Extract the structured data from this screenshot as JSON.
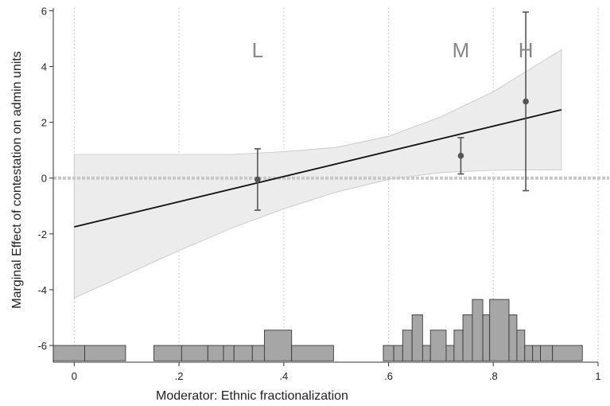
{
  "chart_data": {
    "type": "line",
    "xlabel": "Moderator: Ethnic fractionalization",
    "ylabel": "Marginal Effect of contestation on admin units",
    "xlim": [
      -0.04,
      1.0
    ],
    "ylim": [
      -6.6,
      6.1
    ],
    "xticks": [
      0,
      0.2,
      0.4,
      0.6,
      0.8,
      1.0
    ],
    "xtick_labels": [
      "0",
      ".2",
      ".4",
      ".6",
      ".8",
      "1"
    ],
    "yticks": [
      -6,
      -4,
      -2,
      0,
      2,
      4,
      6
    ],
    "ytick_labels": [
      "-6",
      "-4",
      "-2",
      "0",
      "2",
      "4",
      "6"
    ],
    "grid": "vertical dotted",
    "colors": {
      "line": "#111111",
      "band": "#ececec",
      "band_edge": "#c4c4c4",
      "points": "#555555",
      "bars": "#a6a6a6",
      "zero_line": "#c8c8c8"
    },
    "linear_fit": {
      "x": [
        0,
        0.93
      ],
      "y": [
        -1.75,
        2.45
      ]
    },
    "confidence_band": {
      "x": [
        0,
        0.1,
        0.2,
        0.3,
        0.4,
        0.5,
        0.6,
        0.7,
        0.8,
        0.93
      ],
      "upper": [
        0.85,
        0.85,
        0.85,
        0.85,
        0.95,
        1.1,
        1.5,
        2.2,
        3.1,
        4.6
      ],
      "lower": [
        -4.3,
        -3.45,
        -2.6,
        -1.8,
        -1.1,
        -0.5,
        -0.05,
        0.2,
        0.28,
        0.3
      ]
    },
    "terciles": [
      {
        "label": "L",
        "x": 0.35,
        "estimate": -0.05,
        "ci": [
          -1.15,
          1.05
        ]
      },
      {
        "label": "M",
        "x": 0.738,
        "estimate": 0.8,
        "ci": [
          0.15,
          1.45
        ]
      },
      {
        "label": "H",
        "x": 0.862,
        "estimate": 2.75,
        "ci": [
          -0.45,
          5.95
        ]
      }
    ],
    "histogram": {
      "base": -6.55,
      "unit_height": 0.55,
      "bars": [
        {
          "x0": -0.04,
          "x1": 0.02,
          "count": 1
        },
        {
          "x0": 0.02,
          "x1": 0.098,
          "count": 1
        },
        {
          "x0": 0.152,
          "x1": 0.205,
          "count": 1
        },
        {
          "x0": 0.205,
          "x1": 0.255,
          "count": 1
        },
        {
          "x0": 0.255,
          "x1": 0.285,
          "count": 1
        },
        {
          "x0": 0.285,
          "x1": 0.305,
          "count": 1
        },
        {
          "x0": 0.305,
          "x1": 0.34,
          "count": 1
        },
        {
          "x0": 0.34,
          "x1": 0.363,
          "count": 1
        },
        {
          "x0": 0.363,
          "x1": 0.415,
          "count": 2
        },
        {
          "x0": 0.415,
          "x1": 0.495,
          "count": 1
        },
        {
          "x0": 0.59,
          "x1": 0.61,
          "count": 1
        },
        {
          "x0": 0.61,
          "x1": 0.627,
          "count": 1
        },
        {
          "x0": 0.627,
          "x1": 0.645,
          "count": 2
        },
        {
          "x0": 0.645,
          "x1": 0.665,
          "count": 3
        },
        {
          "x0": 0.665,
          "x1": 0.68,
          "count": 1
        },
        {
          "x0": 0.68,
          "x1": 0.71,
          "count": 2
        },
        {
          "x0": 0.71,
          "x1": 0.725,
          "count": 1
        },
        {
          "x0": 0.725,
          "x1": 0.742,
          "count": 2
        },
        {
          "x0": 0.742,
          "x1": 0.76,
          "count": 3
        },
        {
          "x0": 0.76,
          "x1": 0.78,
          "count": 4
        },
        {
          "x0": 0.78,
          "x1": 0.793,
          "count": 3
        },
        {
          "x0": 0.793,
          "x1": 0.83,
          "count": 4
        },
        {
          "x0": 0.83,
          "x1": 0.845,
          "count": 3
        },
        {
          "x0": 0.845,
          "x1": 0.86,
          "count": 2
        },
        {
          "x0": 0.86,
          "x1": 0.875,
          "count": 1
        },
        {
          "x0": 0.875,
          "x1": 0.89,
          "count": 1
        },
        {
          "x0": 0.89,
          "x1": 0.913,
          "count": 1
        },
        {
          "x0": 0.913,
          "x1": 0.97,
          "count": 1
        }
      ]
    }
  }
}
